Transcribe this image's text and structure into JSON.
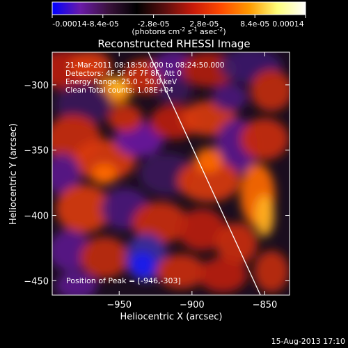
{
  "colorbar": {
    "tick_labels": [
      "-0.00014",
      "-8.4e-05",
      "-2.8e-05",
      "2.8e-05",
      "8.4e-05",
      "0.00014"
    ],
    "tick_values": [
      -0.00014,
      -8.4e-05,
      -2.8e-05,
      2.8e-05,
      8.4e-05,
      0.00014
    ],
    "range": [
      -0.00014,
      0.00014
    ],
    "unit_prefix": "(photons cm",
    "unit_sup1": "-2",
    "unit_mid": " s",
    "unit_sup2": "-1",
    "unit_mid2": " asec",
    "unit_sup3": "-2",
    "unit_suffix": ")",
    "colors": [
      "#0000ff",
      "#6a1aa8",
      "#3a123c",
      "#000000",
      "#5a0e0e",
      "#c81a0a",
      "#ff4a00",
      "#ff9a00",
      "#ffff7a",
      "#ffffff"
    ]
  },
  "chart_data": {
    "type": "heatmap",
    "title": "Reconstructed RHESSI Image",
    "xlabel": "Heliocentric X (arcsec)",
    "ylabel": "Heliocentric Y (arcsec)",
    "xlim": [
      -996,
      -833
    ],
    "ylim": [
      -461,
      -275
    ],
    "x_ticks": [
      -950,
      -900,
      -850
    ],
    "y_ticks": [
      -450,
      -400,
      -350,
      -300
    ],
    "annotations": [
      "21-Mar-2011 08:18:50.000 to 08:24:50.000",
      "Detectors: 4F 5F 6F 7F 8F, Att 0",
      "Energy Range: 25.0 - 50.0 keV",
      "Clean     Total counts: 1.08E+04"
    ],
    "peak_text": "Position of Peak = [-946,-303]",
    "peak_position": [
      -946,
      -303
    ],
    "limb_line": [
      [
        -930,
        -275
      ],
      [
        -853,
        -461
      ]
    ],
    "colors": {
      "limb": "#ffffff",
      "frame": "#ffffff"
    }
  },
  "footer": {
    "timestamp": "15-Aug-2013 17:10"
  }
}
